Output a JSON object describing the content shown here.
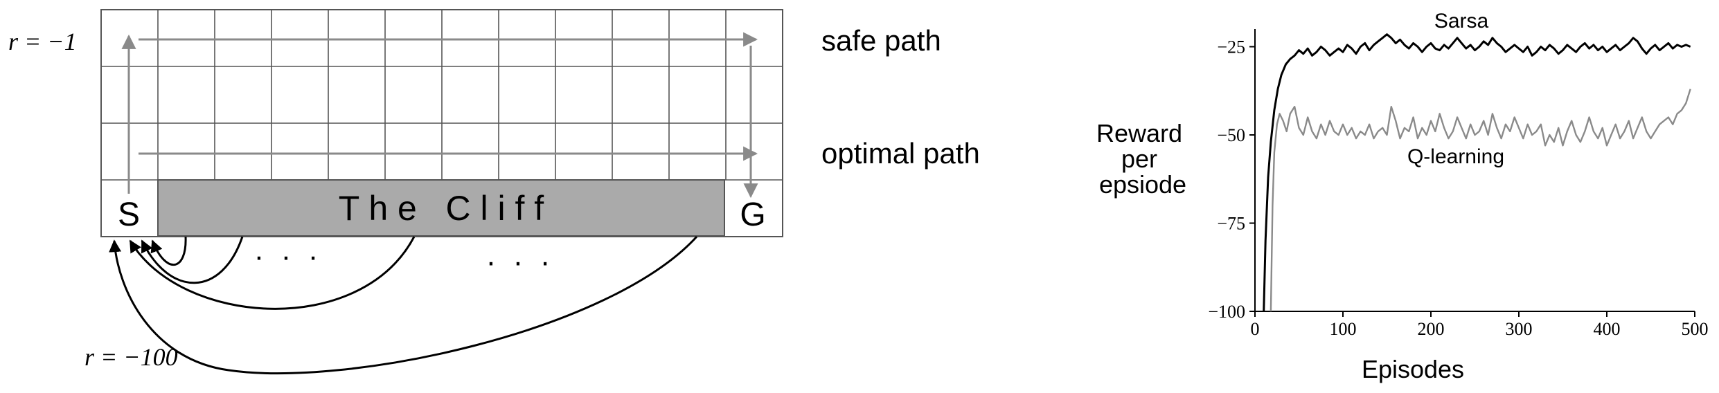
{
  "gridworld": {
    "reward_step_label": "r = −1",
    "reward_cliff_label": "r = −100",
    "start_label": "S",
    "goal_label": "G",
    "cliff_label": "T h e   C l i f f",
    "safe_path_label": "safe path",
    "optimal_path_label": "optimal path",
    "ellipsis_left": "·  ·  ·",
    "ellipsis_right": "·  ·  ·",
    "colors": {
      "cliff": "#aaaaaa",
      "path_arrow": "#8a8a8a",
      "grid": "#555555",
      "return_arrow": "#000000"
    }
  },
  "chart_data": {
    "type": "line",
    "ylabel": "Reward\nper\nepsiode",
    "xlabel": "Episodes",
    "xlim": [
      0,
      500
    ],
    "ylim": [
      -100,
      -20
    ],
    "x_ticks": [
      0,
      100,
      200,
      300,
      400,
      500
    ],
    "y_ticks": [
      -25,
      -50,
      -75,
      -100
    ],
    "y_tick_labels": [
      "−25",
      "−50",
      "−75",
      "−100"
    ],
    "series": [
      {
        "name": "Sarsa",
        "color": "#000000",
        "points": [
          [
            10,
            -100
          ],
          [
            12,
            -80
          ],
          [
            15,
            -62
          ],
          [
            18,
            -52
          ],
          [
            22,
            -43
          ],
          [
            26,
            -37
          ],
          [
            30,
            -33
          ],
          [
            35,
            -30
          ],
          [
            40,
            -28.5
          ],
          [
            45,
            -27.5
          ],
          [
            50,
            -26
          ],
          [
            55,
            -27
          ],
          [
            60,
            -25.5
          ],
          [
            65,
            -27.5
          ],
          [
            70,
            -26.5
          ],
          [
            75,
            -25
          ],
          [
            80,
            -26
          ],
          [
            85,
            -27.5
          ],
          [
            90,
            -26.5
          ],
          [
            95,
            -25.5
          ],
          [
            100,
            -26.5
          ],
          [
            105,
            -24.5
          ],
          [
            110,
            -25.5
          ],
          [
            115,
            -27
          ],
          [
            120,
            -25
          ],
          [
            125,
            -24
          ],
          [
            130,
            -26
          ],
          [
            135,
            -24.5
          ],
          [
            140,
            -23.5
          ],
          [
            145,
            -22.5
          ],
          [
            150,
            -21.5
          ],
          [
            155,
            -22.5
          ],
          [
            160,
            -24
          ],
          [
            165,
            -23
          ],
          [
            170,
            -24.5
          ],
          [
            175,
            -25.5
          ],
          [
            180,
            -24
          ],
          [
            185,
            -25
          ],
          [
            190,
            -26.5
          ],
          [
            195,
            -25
          ],
          [
            200,
            -24
          ],
          [
            205,
            -25.5
          ],
          [
            210,
            -26
          ],
          [
            215,
            -24.5
          ],
          [
            220,
            -25.5
          ],
          [
            225,
            -24
          ],
          [
            230,
            -22.5
          ],
          [
            235,
            -24
          ],
          [
            240,
            -25.5
          ],
          [
            245,
            -24.5
          ],
          [
            250,
            -26
          ],
          [
            255,
            -25
          ],
          [
            260,
            -23.5
          ],
          [
            265,
            -24.5
          ],
          [
            270,
            -22.5
          ],
          [
            275,
            -24
          ],
          [
            280,
            -25
          ],
          [
            285,
            -26.5
          ],
          [
            290,
            -25.5
          ],
          [
            295,
            -24.5
          ],
          [
            300,
            -25.5
          ],
          [
            305,
            -26.5
          ],
          [
            310,
            -25
          ],
          [
            315,
            -27.5
          ],
          [
            320,
            -26.5
          ],
          [
            325,
            -25
          ],
          [
            330,
            -26
          ],
          [
            335,
            -24.5
          ],
          [
            340,
            -25.5
          ],
          [
            345,
            -27
          ],
          [
            350,
            -26
          ],
          [
            355,
            -24.5
          ],
          [
            360,
            -25.5
          ],
          [
            365,
            -26.5
          ],
          [
            370,
            -25
          ],
          [
            375,
            -24
          ],
          [
            380,
            -25.5
          ],
          [
            385,
            -24.5
          ],
          [
            390,
            -26
          ],
          [
            395,
            -25
          ],
          [
            400,
            -26.5
          ],
          [
            405,
            -25.5
          ],
          [
            410,
            -24.5
          ],
          [
            415,
            -26
          ],
          [
            420,
            -25
          ],
          [
            425,
            -24
          ],
          [
            430,
            -22.5
          ],
          [
            435,
            -23.5
          ],
          [
            440,
            -25.5
          ],
          [
            445,
            -27
          ],
          [
            450,
            -25.5
          ],
          [
            455,
            -24.5
          ],
          [
            460,
            -26
          ],
          [
            465,
            -25
          ],
          [
            470,
            -24
          ],
          [
            475,
            -25.5
          ],
          [
            480,
            -24.5
          ],
          [
            485,
            -25
          ],
          [
            490,
            -24.5
          ],
          [
            495,
            -25
          ]
        ]
      },
      {
        "name": "Q-learning",
        "color": "#8a8a8a",
        "points": [
          [
            18,
            -100
          ],
          [
            20,
            -70
          ],
          [
            22,
            -55
          ],
          [
            25,
            -47
          ],
          [
            28,
            -44
          ],
          [
            32,
            -46
          ],
          [
            36,
            -49
          ],
          [
            40,
            -44
          ],
          [
            45,
            -42
          ],
          [
            50,
            -48
          ],
          [
            55,
            -50
          ],
          [
            60,
            -45
          ],
          [
            65,
            -49
          ],
          [
            70,
            -51
          ],
          [
            75,
            -47
          ],
          [
            80,
            -50
          ],
          [
            85,
            -46
          ],
          [
            90,
            -49
          ],
          [
            95,
            -50
          ],
          [
            100,
            -47
          ],
          [
            105,
            -50
          ],
          [
            110,
            -48
          ],
          [
            115,
            -51
          ],
          [
            120,
            -49
          ],
          [
            125,
            -50
          ],
          [
            130,
            -47
          ],
          [
            135,
            -51
          ],
          [
            140,
            -49
          ],
          [
            145,
            -48
          ],
          [
            150,
            -50
          ],
          [
            155,
            -42
          ],
          [
            160,
            -46
          ],
          [
            165,
            -51
          ],
          [
            170,
            -48
          ],
          [
            175,
            -49
          ],
          [
            180,
            -45
          ],
          [
            185,
            -51
          ],
          [
            190,
            -48
          ],
          [
            195,
            -50
          ],
          [
            200,
            -46
          ],
          [
            205,
            -49
          ],
          [
            210,
            -44
          ],
          [
            215,
            -48
          ],
          [
            220,
            -51
          ],
          [
            225,
            -49
          ],
          [
            230,
            -45
          ],
          [
            235,
            -48
          ],
          [
            240,
            -51
          ],
          [
            245,
            -47
          ],
          [
            250,
            -50
          ],
          [
            255,
            -49
          ],
          [
            260,
            -46
          ],
          [
            265,
            -50
          ],
          [
            270,
            -44
          ],
          [
            275,
            -48
          ],
          [
            280,
            -51
          ],
          [
            285,
            -47
          ],
          [
            290,
            -49
          ],
          [
            295,
            -45
          ],
          [
            300,
            -48
          ],
          [
            305,
            -51
          ],
          [
            310,
            -47
          ],
          [
            315,
            -50
          ],
          [
            320,
            -49
          ],
          [
            325,
            -47
          ],
          [
            330,
            -53
          ],
          [
            335,
            -50
          ],
          [
            340,
            -52
          ],
          [
            345,
            -48
          ],
          [
            350,
            -53
          ],
          [
            355,
            -49
          ],
          [
            360,
            -46
          ],
          [
            365,
            -50
          ],
          [
            370,
            -52
          ],
          [
            375,
            -49
          ],
          [
            380,
            -45
          ],
          [
            385,
            -49
          ],
          [
            390,
            -51
          ],
          [
            395,
            -48
          ],
          [
            400,
            -53
          ],
          [
            405,
            -50
          ],
          [
            410,
            -47
          ],
          [
            415,
            -51
          ],
          [
            420,
            -49
          ],
          [
            425,
            -46
          ],
          [
            430,
            -51
          ],
          [
            435,
            -48
          ],
          [
            440,
            -45
          ],
          [
            445,
            -49
          ],
          [
            450,
            -51
          ],
          [
            455,
            -49
          ],
          [
            460,
            -47
          ],
          [
            465,
            -46
          ],
          [
            470,
            -45
          ],
          [
            475,
            -47
          ],
          [
            480,
            -44
          ],
          [
            485,
            -43
          ],
          [
            490,
            -41
          ],
          [
            495,
            -37
          ]
        ]
      }
    ]
  }
}
